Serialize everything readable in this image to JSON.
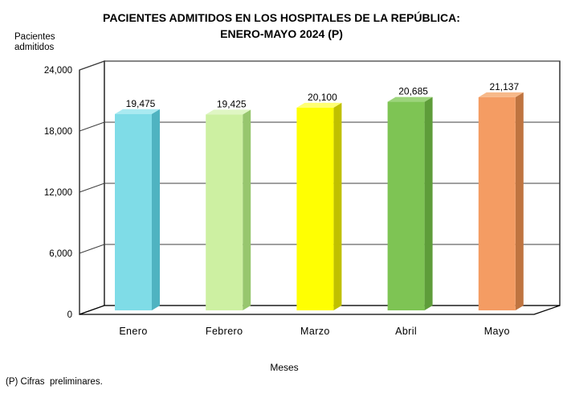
{
  "page": {
    "footer_note": "(P) Cifras  preliminares."
  },
  "chart_data": {
    "type": "bar",
    "style": "3d-column",
    "title": "PACIENTES ADMITIDOS EN LOS HOSPITALES DE LA REPÚBLICA: ENERO-MAYO 2024 (P)",
    "title_lines": [
      "PACIENTES ADMITIDOS EN LOS HOSPITALES DE LA REPÚBLICA:",
      "ENERO-MAYO 2024 (P)"
    ],
    "ylabel": "Pacientes\nadmitidos",
    "xlabel": "Meses",
    "categories": [
      "Enero",
      "Febrero",
      "Marzo",
      "Abril",
      "Mayo"
    ],
    "values": [
      19475,
      19425,
      20100,
      20685,
      21137
    ],
    "value_labels": [
      "19,475",
      "19,425",
      "20,100",
      "20,685",
      "21,137"
    ],
    "ylim": [
      0,
      24000
    ],
    "yticks": [
      0,
      6000,
      12000,
      18000,
      24000
    ],
    "ytick_labels": [
      "0",
      "6,000",
      "12,000",
      "18,000",
      "24,000"
    ],
    "grid": true,
    "legend": "none",
    "background": "#FFFFFF",
    "outline_color": "#000000",
    "gridline_color": "#404040",
    "bar_colors": [
      {
        "name": "cyan",
        "front": "#7FDCE7",
        "top": "#A9EAF1",
        "side": "#4FB3C1"
      },
      {
        "name": "light-green",
        "front": "#CDF0A2",
        "top": "#DFF6C3",
        "side": "#97C66E"
      },
      {
        "name": "yellow",
        "front": "#FFFF02",
        "top": "#FFFF73",
        "side": "#C0C000"
      },
      {
        "name": "green",
        "front": "#7EC454",
        "top": "#9CD47B",
        "side": "#5E9D3A"
      },
      {
        "name": "orange",
        "front": "#F49C63",
        "top": "#F7B98A",
        "side": "#BF7440"
      }
    ]
  }
}
